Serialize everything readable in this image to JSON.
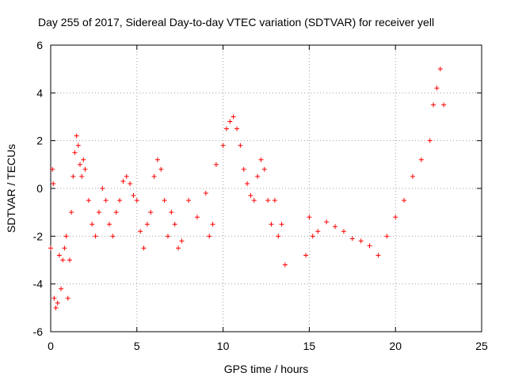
{
  "chart_data": {
    "type": "scatter",
    "title": "Day 255 of 2017, Sidereal Day-to-day VTEC variation (SDTVAR) for receiver yell",
    "xlabel": "GPS time / hours",
    "ylabel": "SDTVAR / TECUs",
    "xlim": [
      0,
      25
    ],
    "ylim": [
      -6,
      6
    ],
    "xticks": [
      0,
      5,
      10,
      15,
      20,
      25
    ],
    "yticks": [
      -6,
      -4,
      -2,
      0,
      2,
      4,
      6
    ],
    "grid": true,
    "marker": "+",
    "series": [
      {
        "name": "SDTVAR",
        "color": "#ff0000",
        "x": [
          0.0,
          0.1,
          0.15,
          0.2,
          0.3,
          0.4,
          0.5,
          0.6,
          0.7,
          0.8,
          0.9,
          1.0,
          1.1,
          1.2,
          1.3,
          1.4,
          1.5,
          1.6,
          1.7,
          1.8,
          1.9,
          2.0,
          2.2,
          2.4,
          2.6,
          2.8,
          3.0,
          3.2,
          3.4,
          3.6,
          3.8,
          4.0,
          4.2,
          4.4,
          4.6,
          4.8,
          5.0,
          5.2,
          5.4,
          5.6,
          5.8,
          6.0,
          6.2,
          6.4,
          6.6,
          6.8,
          7.0,
          7.2,
          7.4,
          7.6,
          8.0,
          8.5,
          9.0,
          9.2,
          9.4,
          9.6,
          10.0,
          10.2,
          10.4,
          10.6,
          10.8,
          11.0,
          11.2,
          11.4,
          11.6,
          11.8,
          12.0,
          12.2,
          12.4,
          12.6,
          12.8,
          13.0,
          13.2,
          13.4,
          13.6,
          14.8,
          15.0,
          15.2,
          15.5,
          16.0,
          16.5,
          17.0,
          17.5,
          18.0,
          18.5,
          19.0,
          19.5,
          20.0,
          20.5,
          21.0,
          21.5,
          22.0,
          22.2,
          22.4,
          22.6,
          22.8
        ],
        "y": [
          -2.5,
          0.8,
          0.2,
          -4.6,
          -5.0,
          -4.8,
          -2.8,
          -4.2,
          -3.0,
          -2.5,
          -2.0,
          -4.6,
          -3.0,
          -1.0,
          0.5,
          1.5,
          2.2,
          1.8,
          1.0,
          0.5,
          1.2,
          0.8,
          -0.5,
          -1.5,
          -2.0,
          -1.0,
          0.0,
          -0.5,
          -1.5,
          -2.0,
          -1.0,
          -0.5,
          0.3,
          0.5,
          0.2,
          -0.3,
          -0.5,
          -1.8,
          -2.5,
          -1.5,
          -1.0,
          0.5,
          1.2,
          0.8,
          -0.5,
          -2.0,
          -1.0,
          -1.5,
          -2.5,
          -2.2,
          -0.5,
          -1.2,
          -0.2,
          -2.0,
          -1.5,
          1.0,
          1.8,
          2.5,
          2.8,
          3.0,
          2.5,
          1.8,
          0.8,
          0.2,
          -0.3,
          -0.5,
          0.5,
          1.2,
          0.8,
          -0.5,
          -1.5,
          -0.5,
          -2.0,
          -1.5,
          -3.2,
          -2.8,
          -1.2,
          -2.0,
          -1.8,
          -1.4,
          -1.6,
          -1.8,
          -2.1,
          -2.2,
          -2.4,
          -2.8,
          -2.0,
          -1.2,
          -0.5,
          0.5,
          1.2,
          2.0,
          3.5,
          4.2,
          5.0,
          3.5
        ]
      }
    ]
  }
}
